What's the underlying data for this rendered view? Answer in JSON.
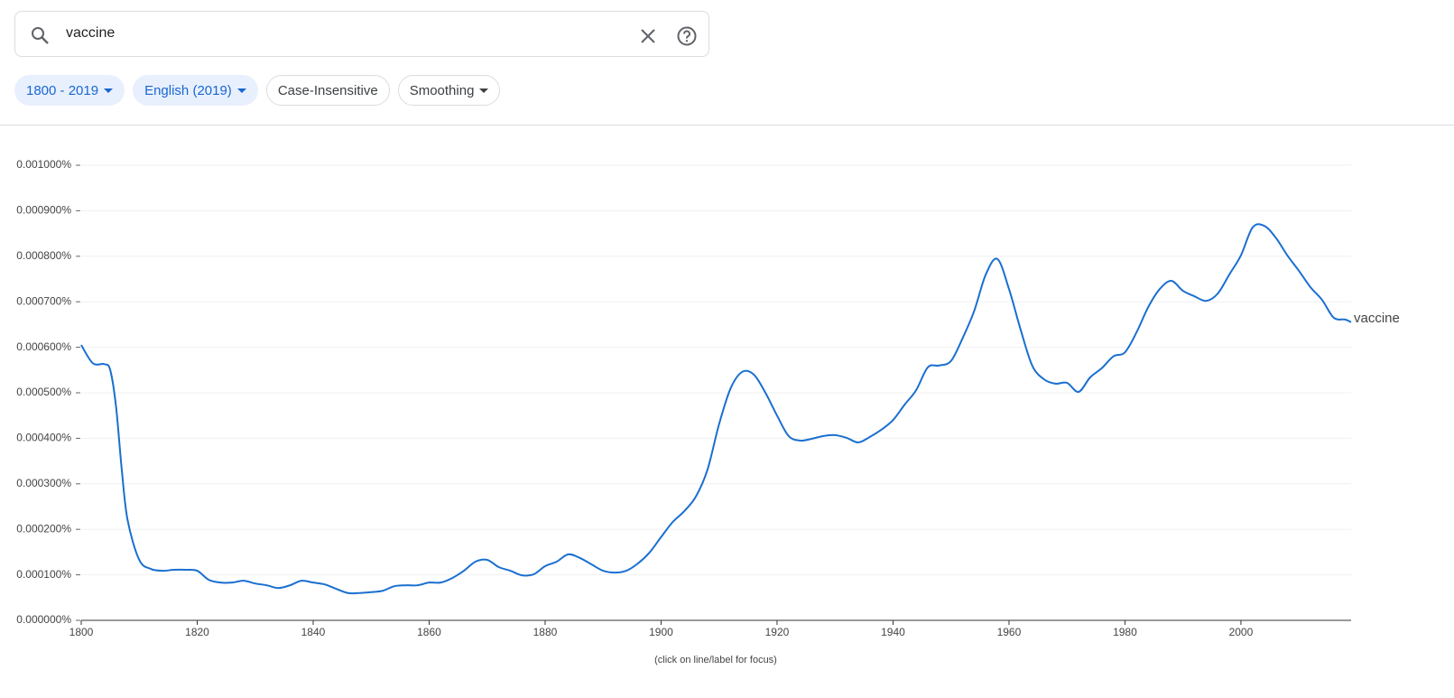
{
  "search": {
    "query": "vaccine"
  },
  "chips": [
    "1800 - 2019",
    "English (2019)",
    "Case-Insensitive",
    "Smoothing"
  ],
  "chart_data": {
    "type": "line",
    "x": [
      1800,
      1802,
      1804,
      1805,
      1806,
      1807,
      1808,
      1810,
      1812,
      1814,
      1816,
      1818,
      1820,
      1822,
      1824,
      1826,
      1828,
      1830,
      1832,
      1834,
      1836,
      1838,
      1840,
      1842,
      1844,
      1846,
      1848,
      1850,
      1852,
      1854,
      1856,
      1858,
      1860,
      1862,
      1864,
      1866,
      1868,
      1870,
      1872,
      1874,
      1876,
      1878,
      1880,
      1882,
      1884,
      1886,
      1888,
      1890,
      1892,
      1894,
      1896,
      1898,
      1900,
      1902,
      1904,
      1906,
      1908,
      1910,
      1912,
      1914,
      1916,
      1918,
      1920,
      1922,
      1924,
      1926,
      1928,
      1930,
      1932,
      1934,
      1936,
      1938,
      1940,
      1942,
      1944,
      1946,
      1948,
      1950,
      1952,
      1954,
      1956,
      1958,
      1960,
      1962,
      1964,
      1966,
      1968,
      1970,
      1972,
      1974,
      1976,
      1978,
      1980,
      1982,
      1984,
      1986,
      1988,
      1990,
      1992,
      1994,
      1996,
      1998,
      2000,
      2002,
      2004,
      2006,
      2008,
      2010,
      2012,
      2014,
      2016,
      2018,
      2019
    ],
    "series": [
      {
        "name": "vaccine",
        "color": "#1a6fd0",
        "values": [
          0.000605,
          0.000565,
          0.000563,
          0.00055,
          0.00047,
          0.00033,
          0.00022,
          0.000133,
          0.000113,
          0.000109,
          0.000111,
          0.000111,
          0.000109,
          8.9e-05,
          8.3e-05,
          8.3e-05,
          8.7e-05,
          8.1e-05,
          7.7e-05,
          7.1e-05,
          7.7e-05,
          8.7e-05,
          8.3e-05,
          7.9e-05,
          6.9e-05,
          6e-05,
          6e-05,
          6.2e-05,
          6.5e-05,
          7.5e-05,
          7.7e-05,
          7.7e-05,
          8.3e-05,
          8.3e-05,
          9.3e-05,
          0.000109,
          0.000129,
          0.000133,
          0.000117,
          0.000109,
          9.9e-05,
          0.000101,
          0.000119,
          0.000129,
          0.000145,
          0.000137,
          0.000123,
          0.000109,
          0.000105,
          0.000109,
          0.000125,
          0.000149,
          0.000183,
          0.000216,
          0.00024,
          0.000272,
          0.000331,
          0.000431,
          0.00051,
          0.000546,
          0.00054,
          0.0005,
          0.00045,
          0.000405,
          0.000395,
          0.000399,
          0.000405,
          0.000407,
          0.000401,
          0.000391,
          0.000403,
          0.000419,
          0.00044,
          0.000474,
          0.000506,
          0.000556,
          0.00056,
          0.00057,
          0.00062,
          0.00068,
          0.00076,
          0.000794,
          0.000728,
          0.000639,
          0.00056,
          0.00053,
          0.00052,
          0.000522,
          0.000502,
          0.000534,
          0.000554,
          0.00058,
          0.000589,
          0.000633,
          0.000688,
          0.000728,
          0.000746,
          0.000724,
          0.000712,
          0.000702,
          0.000718,
          0.00076,
          0.000802,
          0.000863,
          0.000867,
          0.000841,
          0.000802,
          0.000768,
          0.000732,
          0.000704,
          0.000665,
          0.000661,
          0.000655
        ]
      }
    ],
    "xlim": [
      1800,
      2019
    ],
    "xticks": [
      1800,
      1820,
      1840,
      1860,
      1880,
      1900,
      1920,
      1940,
      1960,
      1980,
      2000
    ],
    "ylim": [
      0,
      0.001
    ],
    "yticks": [
      {
        "value": 0,
        "label": "0.000000%"
      },
      {
        "value": 0.0001,
        "label": "0.000100%"
      },
      {
        "value": 0.0002,
        "label": "0.000200%"
      },
      {
        "value": 0.0003,
        "label": "0.000300%"
      },
      {
        "value": 0.0004,
        "label": "0.000400%"
      },
      {
        "value": 0.0005,
        "label": "0.000500%"
      },
      {
        "value": 0.0006,
        "label": "0.000600%"
      },
      {
        "value": 0.0007,
        "label": "0.000700%"
      },
      {
        "value": 0.0008,
        "label": "0.000800%"
      },
      {
        "value": 0.0009,
        "label": "0.000900%"
      },
      {
        "value": 0.001,
        "label": "0.001000%"
      }
    ],
    "grid": true
  },
  "footer": "(click on line/label for focus)"
}
